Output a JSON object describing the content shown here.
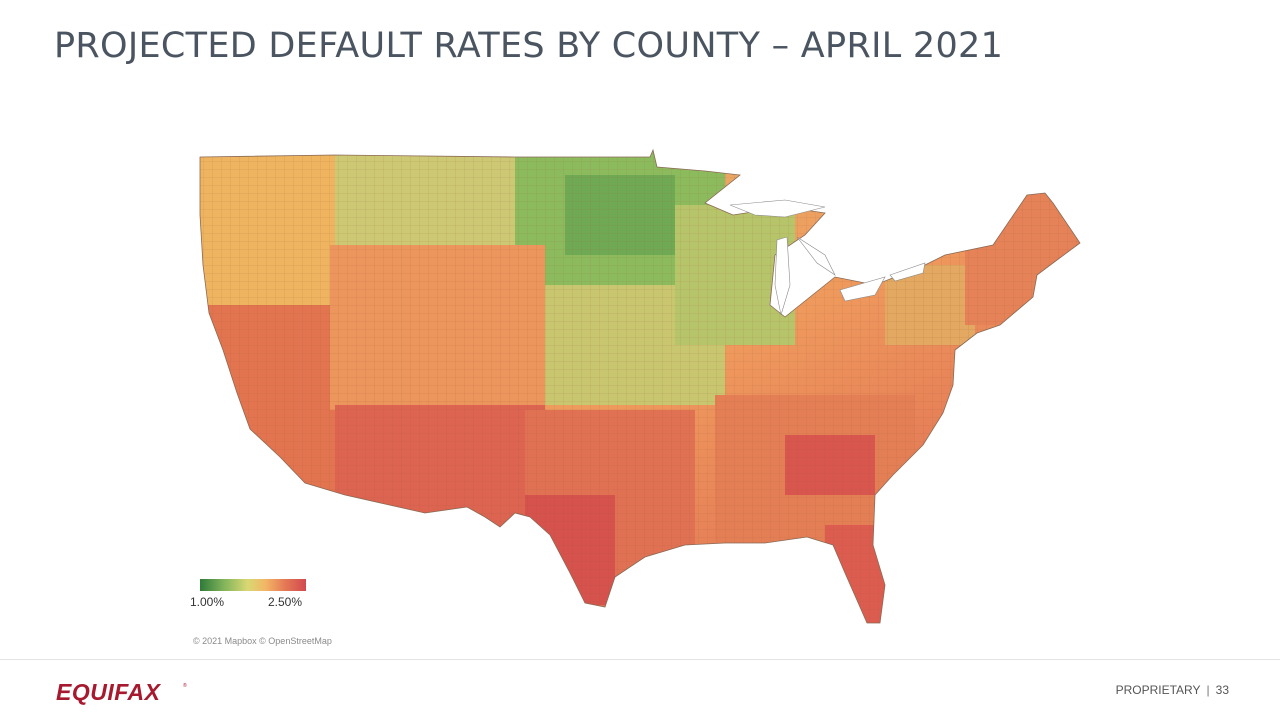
{
  "header": {
    "title": "PROJECTED DEFAULT RATES BY COUNTY – APRIL 2021"
  },
  "map": {
    "region": "Contiguous United States",
    "colors": {
      "low": "#2f7a3a",
      "mid": "#d9d873",
      "high": "#d2494f"
    }
  },
  "legend": {
    "min_label": "1.00%",
    "max_label": "2.50%"
  },
  "attribution": "© 2021 Mapbox © OpenStreetMap",
  "footer": {
    "logo_text": "EQUIFAX",
    "classification": "PROPRIETARY",
    "separator": "|",
    "page_number": "33"
  }
}
